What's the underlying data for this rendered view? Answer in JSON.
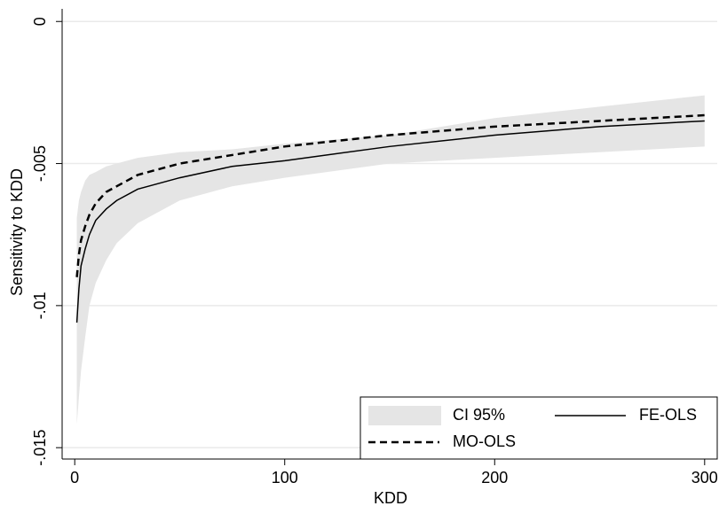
{
  "chart_data": {
    "type": "line",
    "x_label": "KDD",
    "y_label": "Sensitivity to KDD",
    "x": [
      1,
      2,
      3,
      5,
      7,
      10,
      15,
      20,
      30,
      50,
      75,
      100,
      150,
      200,
      250,
      300
    ],
    "series": [
      {
        "name": "CI 95%",
        "color": "#e5e5e5",
        "upper": [
          -0.0069,
          -0.0063,
          -0.006,
          -0.0056,
          -0.0054,
          -0.0053,
          -0.0051,
          -0.005,
          -0.0048,
          -0.0046,
          -0.0045,
          -0.0043,
          -0.004,
          -0.0034,
          -0.003,
          -0.0026
        ],
        "lower": [
          -0.0142,
          -0.0132,
          -0.0123,
          -0.0111,
          -0.01,
          -0.0092,
          -0.0084,
          -0.0078,
          -0.0071,
          -0.0063,
          -0.0058,
          -0.0055,
          -0.005,
          -0.0048,
          -0.0046,
          -0.0044
        ]
      },
      {
        "name": "FE-OLS",
        "color": "#000000",
        "style": "solid",
        "values": [
          -0.0106,
          -0.0094,
          -0.0086,
          -0.008,
          -0.0075,
          -0.007,
          -0.0066,
          -0.0063,
          -0.0059,
          -0.0055,
          -0.0051,
          -0.0049,
          -0.0044,
          -0.004,
          -0.0037,
          -0.0035
        ]
      },
      {
        "name": "MO-OLS",
        "color": "#000000",
        "style": "dashed",
        "values": [
          -0.009,
          -0.0082,
          -0.0077,
          -0.0072,
          -0.0068,
          -0.0064,
          -0.006,
          -0.0058,
          -0.0054,
          -0.005,
          -0.0047,
          -0.0044,
          -0.004,
          -0.0037,
          -0.0035,
          -0.0033
        ]
      }
    ],
    "xlim": [
      -6,
      306
    ],
    "xticks": [
      0,
      100,
      200,
      300
    ],
    "ylim": [
      -0.0154,
      0.0006
    ],
    "yticks": [
      {
        "value": 0,
        "label": "0"
      },
      {
        "value": -0.005,
        "label": "-.005"
      },
      {
        "value": -0.01,
        "label": "-.01"
      },
      {
        "value": -0.015,
        "label": "-.015"
      }
    ],
    "grid": true
  }
}
